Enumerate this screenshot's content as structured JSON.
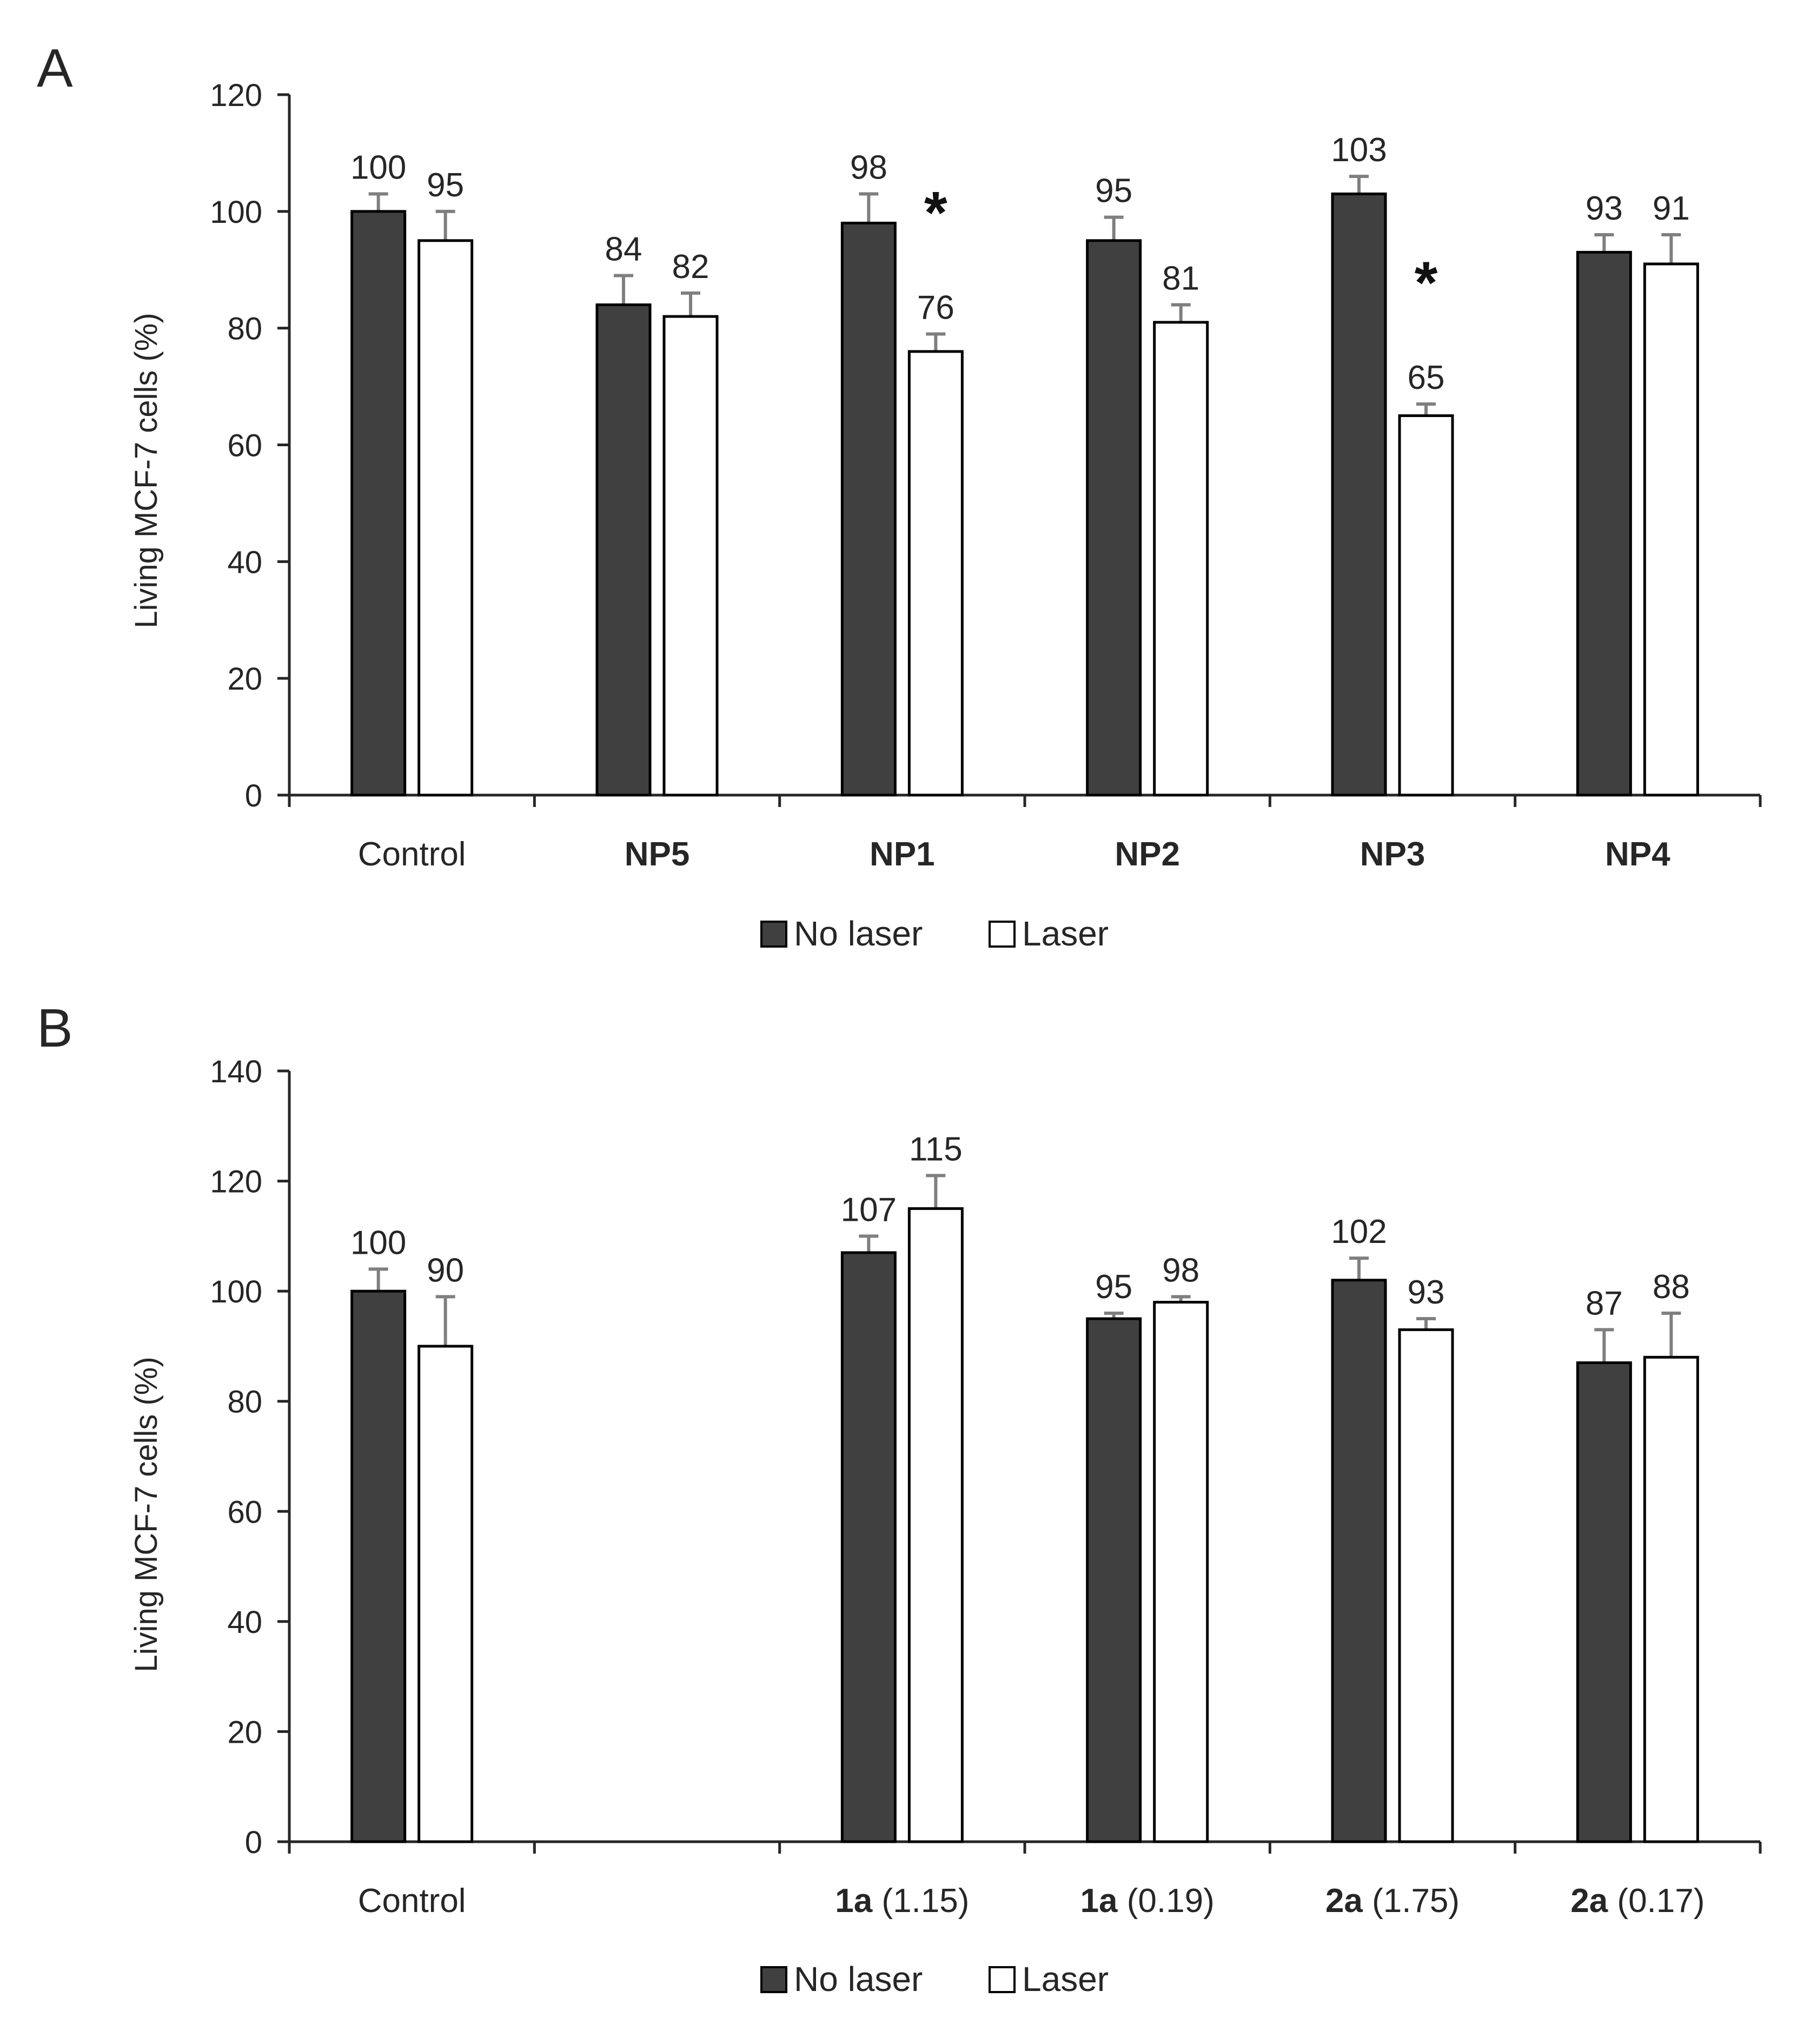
{
  "colors": {
    "no_laser": "#404040",
    "laser": "#ffffff",
    "outline": "#000000",
    "error_bar": "#7f7f7f",
    "axis": "#262626"
  },
  "chart_data": [
    {
      "panel": "A",
      "type": "bar",
      "ylabel": "Living MCF-7 cells (%)",
      "xlabel": "",
      "ylim": [
        0,
        120
      ],
      "yticks": [
        0,
        20,
        40,
        60,
        80,
        100,
        120
      ],
      "grid": false,
      "legend": "bottom-center",
      "categories": [
        {
          "main": "Control",
          "bold": false,
          "suffix": ""
        },
        {
          "main": "NP5",
          "bold": true,
          "suffix": ""
        },
        {
          "main": "NP1",
          "bold": true,
          "suffix": ""
        },
        {
          "main": "NP2",
          "bold": true,
          "suffix": ""
        },
        {
          "main": "NP3",
          "bold": true,
          "suffix": ""
        },
        {
          "main": "NP4",
          "bold": true,
          "suffix": ""
        }
      ],
      "series": [
        {
          "name": "No laser",
          "values": [
            100,
            84,
            98,
            95,
            103,
            93
          ],
          "errors": [
            3,
            5,
            5,
            4,
            3,
            3
          ]
        },
        {
          "name": "Laser",
          "values": [
            95,
            82,
            76,
            81,
            65,
            91
          ],
          "errors": [
            5,
            4,
            3,
            3,
            2,
            5
          ]
        }
      ],
      "annotations": [
        {
          "text": "*",
          "category": 2,
          "y": 100
        },
        {
          "text": "*",
          "category": 4,
          "y": 88
        }
      ]
    },
    {
      "panel": "B",
      "type": "bar",
      "ylabel": "Living MCF-7 cells (%)",
      "xlabel": "",
      "ylim": [
        0,
        140
      ],
      "yticks": [
        0,
        20,
        40,
        60,
        80,
        100,
        120,
        140
      ],
      "grid": false,
      "legend": "bottom-center",
      "categories": [
        {
          "main": "Control",
          "bold": false,
          "suffix": ""
        },
        {
          "main": "",
          "bold": false,
          "suffix": ""
        },
        {
          "main": "1a",
          "bold": true,
          "suffix": " (1.15)"
        },
        {
          "main": "1a",
          "bold": true,
          "suffix": " (0.19)"
        },
        {
          "main": "2a",
          "bold": true,
          "suffix": " (1.75)"
        },
        {
          "main": "2a",
          "bold": true,
          "suffix": " (0.17)"
        }
      ],
      "series": [
        {
          "name": "No laser",
          "values": [
            100,
            null,
            107,
            95,
            102,
            87
          ],
          "errors": [
            4,
            null,
            3,
            1,
            4,
            6
          ]
        },
        {
          "name": "Laser",
          "values": [
            90,
            null,
            115,
            98,
            93,
            88
          ],
          "errors": [
            9,
            null,
            6,
            1,
            2,
            8
          ]
        }
      ],
      "annotations": []
    }
  ]
}
